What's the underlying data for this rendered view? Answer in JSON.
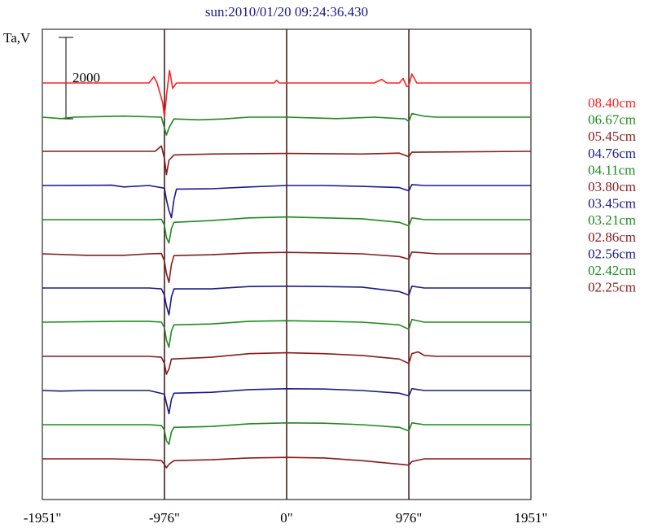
{
  "chart_data": {
    "type": "line",
    "title": "sun:2010/01/20 09:24:36.430",
    "ylabel": "Ta,V",
    "scale_bar_label": "2000",
    "scale_bar_value": 2000,
    "x_ticks": [
      {
        "value": -1951,
        "label": "-1951\""
      },
      {
        "value": -976,
        "label": "-976\""
      },
      {
        "value": 0,
        "label": "0\""
      },
      {
        "value": 976,
        "label": "976\""
      },
      {
        "value": 1951,
        "label": "1951\""
      }
    ],
    "xlim": [
      -1951,
      1951
    ],
    "vertical_lines": [
      -976,
      0,
      976
    ],
    "colors": {
      "red": "#ff2020",
      "green": "#1f8a1f",
      "maroon": "#8b1a1a",
      "navy": "#1a1a8c",
      "axis": "#000000",
      "marker": "#3a1010"
    },
    "series": [
      {
        "name": "08.40cm",
        "color": "#ff2020",
        "offset": 0,
        "points": [
          [
            -1951,
            0
          ],
          [
            -1100,
            0
          ],
          [
            -1060,
            350
          ],
          [
            -1035,
            0
          ],
          [
            -990,
            -1100
          ],
          [
            -976,
            -1900
          ],
          [
            -958,
            -600
          ],
          [
            -935,
            700
          ],
          [
            -910,
            -300
          ],
          [
            -880,
            0
          ],
          [
            -100,
            0
          ],
          [
            -80,
            150
          ],
          [
            -60,
            0
          ],
          [
            700,
            0
          ],
          [
            760,
            200
          ],
          [
            800,
            0
          ],
          [
            900,
            0
          ],
          [
            930,
            250
          ],
          [
            960,
            -200
          ],
          [
            976,
            -150
          ],
          [
            1000,
            500
          ],
          [
            1040,
            0
          ],
          [
            1951,
            0
          ]
        ]
      },
      {
        "name": "06.67cm",
        "color": "#1f8a1f",
        "offset": 1,
        "points": [
          [
            -1951,
            0
          ],
          [
            -1800,
            -80
          ],
          [
            -1700,
            0
          ],
          [
            -1300,
            60
          ],
          [
            -1000,
            0
          ],
          [
            -976,
            -600
          ],
          [
            -960,
            -1000
          ],
          [
            -940,
            -600
          ],
          [
            -900,
            -100
          ],
          [
            -700,
            -150
          ],
          [
            -500,
            -100
          ],
          [
            -300,
            0
          ],
          [
            0,
            0
          ],
          [
            400,
            -80
          ],
          [
            700,
            0
          ],
          [
            950,
            -100
          ],
          [
            976,
            -250
          ],
          [
            1000,
            200
          ],
          [
            1100,
            50
          ],
          [
            1200,
            0
          ],
          [
            1951,
            0
          ]
        ]
      },
      {
        "name": "05.45cm",
        "color": "#8b1a1a",
        "offset": 2,
        "points": [
          [
            -1951,
            0
          ],
          [
            -1050,
            0
          ],
          [
            -1000,
            300
          ],
          [
            -976,
            -400
          ],
          [
            -960,
            -1300
          ],
          [
            -940,
            -500
          ],
          [
            -900,
            -200
          ],
          [
            -600,
            -150
          ],
          [
            0,
            -120
          ],
          [
            600,
            -150
          ],
          [
            900,
            -100
          ],
          [
            976,
            -300
          ],
          [
            1000,
            -50
          ],
          [
            1951,
            0
          ]
        ]
      },
      {
        "name": "04.76cm",
        "color": "#1a1a8c",
        "offset": 3,
        "points": [
          [
            -1951,
            0
          ],
          [
            -1400,
            20
          ],
          [
            -1300,
            -80
          ],
          [
            -1100,
            0
          ],
          [
            -976,
            -150
          ],
          [
            -960,
            -800
          ],
          [
            -940,
            -1400
          ],
          [
            -920,
            -1800
          ],
          [
            -900,
            -800
          ],
          [
            -880,
            -200
          ],
          [
            -600,
            -180
          ],
          [
            -300,
            -80
          ],
          [
            0,
            0
          ],
          [
            300,
            0
          ],
          [
            600,
            -50
          ],
          [
            900,
            -120
          ],
          [
            976,
            -300
          ],
          [
            1000,
            50
          ],
          [
            1100,
            0
          ],
          [
            1951,
            0
          ]
        ]
      },
      {
        "name": "04.11cm",
        "color": "#1f8a1f",
        "offset": 4,
        "points": [
          [
            -1951,
            0
          ],
          [
            -1100,
            0
          ],
          [
            -1000,
            20
          ],
          [
            -976,
            -300
          ],
          [
            -960,
            -1000
          ],
          [
            -940,
            -1300
          ],
          [
            -920,
            -500
          ],
          [
            -900,
            -150
          ],
          [
            -600,
            -50
          ],
          [
            -300,
            100
          ],
          [
            0,
            150
          ],
          [
            300,
            100
          ],
          [
            600,
            50
          ],
          [
            900,
            -150
          ],
          [
            976,
            -350
          ],
          [
            1000,
            100
          ],
          [
            1100,
            0
          ],
          [
            1951,
            0
          ]
        ]
      },
      {
        "name": "03.80cm",
        "color": "#8b1a1a",
        "offset": 5,
        "points": [
          [
            -1951,
            0
          ],
          [
            -1600,
            -80
          ],
          [
            -1300,
            -80
          ],
          [
            -1100,
            0
          ],
          [
            -1000,
            20
          ],
          [
            -976,
            -400
          ],
          [
            -960,
            -1100
          ],
          [
            -940,
            -1600
          ],
          [
            -920,
            -600
          ],
          [
            -900,
            -100
          ],
          [
            -600,
            -50
          ],
          [
            -300,
            50
          ],
          [
            0,
            80
          ],
          [
            300,
            50
          ],
          [
            600,
            0
          ],
          [
            900,
            -150
          ],
          [
            976,
            -300
          ],
          [
            1000,
            100
          ],
          [
            1200,
            0
          ],
          [
            1951,
            0
          ]
        ]
      },
      {
        "name": "03.45cm",
        "color": "#1a1a8c",
        "offset": 6,
        "points": [
          [
            -1951,
            0
          ],
          [
            -1100,
            0
          ],
          [
            -1000,
            -50
          ],
          [
            -976,
            -400
          ],
          [
            -960,
            -1000
          ],
          [
            -940,
            -1500
          ],
          [
            -920,
            -500
          ],
          [
            -900,
            -50
          ],
          [
            -600,
            -50
          ],
          [
            -300,
            80
          ],
          [
            0,
            100
          ],
          [
            300,
            80
          ],
          [
            600,
            50
          ],
          [
            900,
            -200
          ],
          [
            976,
            -400
          ],
          [
            1000,
            100
          ],
          [
            1100,
            0
          ],
          [
            1951,
            0
          ]
        ]
      },
      {
        "name": "03.21cm",
        "color": "#1f8a1f",
        "offset": 7,
        "points": [
          [
            -1951,
            0
          ],
          [
            -1300,
            50
          ],
          [
            -1100,
            50
          ],
          [
            -1000,
            0
          ],
          [
            -976,
            -300
          ],
          [
            -960,
            -1000
          ],
          [
            -940,
            -1400
          ],
          [
            -920,
            -500
          ],
          [
            -900,
            -150
          ],
          [
            -600,
            -100
          ],
          [
            -300,
            50
          ],
          [
            0,
            80
          ],
          [
            300,
            50
          ],
          [
            600,
            0
          ],
          [
            900,
            -150
          ],
          [
            976,
            -400
          ],
          [
            1000,
            150
          ],
          [
            1100,
            0
          ],
          [
            1951,
            0
          ]
        ]
      },
      {
        "name": "02.86cm",
        "color": "#8b1a1a",
        "offset": 8,
        "points": [
          [
            -1951,
            0
          ],
          [
            -1100,
            0
          ],
          [
            -1000,
            -50
          ],
          [
            -976,
            -400
          ],
          [
            -960,
            -1000
          ],
          [
            -940,
            -700
          ],
          [
            -920,
            -150
          ],
          [
            -600,
            -50
          ],
          [
            -300,
            150
          ],
          [
            0,
            200
          ],
          [
            300,
            150
          ],
          [
            600,
            50
          ],
          [
            900,
            -150
          ],
          [
            976,
            -400
          ],
          [
            1000,
            150
          ],
          [
            1050,
            250
          ],
          [
            1100,
            50
          ],
          [
            1200,
            0
          ],
          [
            1951,
            0
          ]
        ]
      },
      {
        "name": "02.56cm",
        "color": "#1a1a8c",
        "offset": 9,
        "points": [
          [
            -1951,
            0
          ],
          [
            -1800,
            -30
          ],
          [
            -1600,
            0
          ],
          [
            -1100,
            0
          ],
          [
            -976,
            -200
          ],
          [
            -960,
            -700
          ],
          [
            -940,
            -1300
          ],
          [
            -920,
            -500
          ],
          [
            -900,
            -150
          ],
          [
            -600,
            -100
          ],
          [
            -300,
            50
          ],
          [
            0,
            100
          ],
          [
            300,
            80
          ],
          [
            600,
            0
          ],
          [
            900,
            -150
          ],
          [
            976,
            -300
          ],
          [
            1000,
            100
          ],
          [
            1100,
            0
          ],
          [
            1951,
            0
          ]
        ]
      },
      {
        "name": "02.42cm",
        "color": "#1f8a1f",
        "offset": 10,
        "points": [
          [
            -1951,
            0
          ],
          [
            -1100,
            0
          ],
          [
            -1000,
            -50
          ],
          [
            -976,
            -300
          ],
          [
            -960,
            -900
          ],
          [
            -940,
            -1100
          ],
          [
            -920,
            -400
          ],
          [
            -900,
            -150
          ],
          [
            -600,
            -100
          ],
          [
            -300,
            50
          ],
          [
            0,
            100
          ],
          [
            300,
            80
          ],
          [
            600,
            0
          ],
          [
            900,
            -150
          ],
          [
            976,
            -350
          ],
          [
            1000,
            100
          ],
          [
            1100,
            0
          ],
          [
            1951,
            0
          ]
        ]
      },
      {
        "name": "02.25cm",
        "color": "#8b1a1a",
        "offset": 11,
        "points": [
          [
            -1951,
            0
          ],
          [
            -1400,
            0
          ],
          [
            -1100,
            -50
          ],
          [
            -1000,
            -100
          ],
          [
            -976,
            -300
          ],
          [
            -960,
            -500
          ],
          [
            -940,
            -300
          ],
          [
            -900,
            -100
          ],
          [
            -600,
            -50
          ],
          [
            -300,
            50
          ],
          [
            0,
            80
          ],
          [
            300,
            50
          ],
          [
            600,
            -100
          ],
          [
            900,
            -300
          ],
          [
            976,
            -350
          ],
          [
            1000,
            -150
          ],
          [
            1100,
            0
          ],
          [
            1951,
            0
          ]
        ]
      }
    ]
  }
}
